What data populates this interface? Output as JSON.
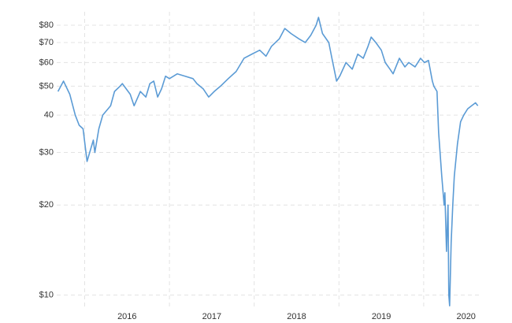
{
  "chart_data": {
    "type": "line",
    "y_scale": "log",
    "grid": true,
    "xlim": [
      2015.67,
      2020.67
    ],
    "ylim": [
      9.1,
      88.7
    ],
    "xticks": [
      2016,
      2017,
      2018,
      2019,
      2020
    ],
    "yticks": [
      {
        "value": 10,
        "label": "$10"
      },
      {
        "value": 20,
        "label": "$20"
      },
      {
        "value": 30,
        "label": "$30"
      },
      40,
      {
        "value": 50,
        "label": "$50"
      },
      {
        "value": 60,
        "label": "$60"
      },
      {
        "value": 70,
        "label": "$70"
      },
      {
        "value": 80,
        "label": "$80"
      }
    ],
    "x": [
      2015.685,
      2015.75,
      2015.824,
      2015.889,
      2015.935,
      2015.981,
      2016.028,
      2016.102,
      2016.12,
      2016.167,
      2016.213,
      2016.306,
      2016.352,
      2016.417,
      2016.444,
      2016.537,
      2016.583,
      2016.657,
      2016.722,
      2016.769,
      2016.815,
      2016.861,
      2016.907,
      2016.954,
      2017.0,
      2017.093,
      2017.185,
      2017.278,
      2017.324,
      2017.398,
      2017.463,
      2017.528,
      2017.602,
      2017.694,
      2017.787,
      2017.88,
      2017.972,
      2018.065,
      2018.139,
      2018.204,
      2018.296,
      2018.361,
      2018.435,
      2018.528,
      2018.602,
      2018.667,
      2018.731,
      2018.759,
      2018.806,
      2018.88,
      2018.917,
      2018.972,
      2019.009,
      2019.083,
      2019.157,
      2019.222,
      2019.287,
      2019.343,
      2019.38,
      2019.435,
      2019.5,
      2019.546,
      2019.602,
      2019.639,
      2019.713,
      2019.778,
      2019.824,
      2019.898,
      2019.963,
      2020.009,
      2020.056,
      2020.102,
      2020.12,
      2020.157,
      2020.176,
      2020.213,
      2020.241,
      2020.25,
      2020.269,
      2020.287,
      2020.296,
      2020.306,
      2020.324,
      2020.343,
      2020.361,
      2020.398,
      2020.435,
      2020.472,
      2020.519,
      2020.565,
      2020.611,
      2020.639
    ],
    "series": [
      {
        "color": "#5b9bd5",
        "values": [
          48,
          52,
          47,
          40,
          37,
          36,
          28,
          33,
          30,
          36,
          40,
          43,
          48,
          50,
          51,
          47,
          43,
          48,
          46,
          51,
          52,
          46,
          49,
          54,
          53,
          55,
          54,
          53,
          51,
          49,
          46,
          48,
          50,
          53,
          56,
          62,
          64,
          66,
          63,
          68,
          72,
          78,
          75,
          72,
          70,
          74,
          80,
          85,
          75,
          70,
          62,
          52,
          54,
          60,
          57,
          64,
          62,
          68,
          73,
          70,
          66,
          60,
          57,
          55,
          62,
          58,
          60,
          58,
          62,
          60,
          61,
          52,
          50,
          48,
          35,
          25,
          20,
          22,
          14,
          20,
          10,
          9.2,
          15,
          20,
          25,
          32,
          38,
          40,
          42,
          43,
          44,
          43
        ]
      }
    ]
  }
}
